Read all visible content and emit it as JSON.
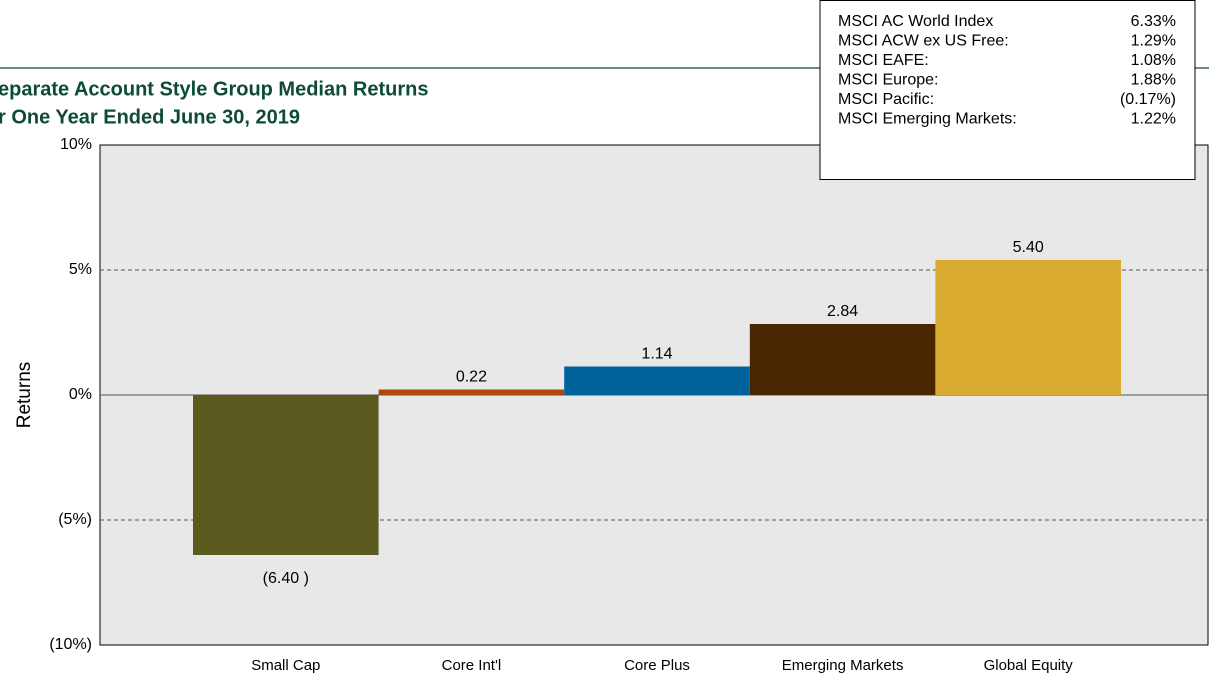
{
  "chart_data": {
    "type": "bar",
    "title_lines": [
      "eparate Account Style Group Median Returns",
      "r One Year Ended June 30, 2019"
    ],
    "ylabel": "Returns",
    "categories": [
      "Small Cap",
      "Core Int'l",
      "Core Plus",
      "Emerging Markets",
      "Global Equity"
    ],
    "values": [
      -6.4,
      0.22,
      1.14,
      2.84,
      5.4
    ],
    "value_labels": [
      "(6.40 )",
      "0.22",
      "1.14",
      "2.84",
      "5.40"
    ],
    "colors": [
      "#5b5a1f",
      "#b0490f",
      "#00629b",
      "#4a2601",
      "#d9aa30"
    ],
    "ylim": [
      -10,
      10
    ],
    "yticks": [
      {
        "value": -10,
        "label": "(10%)"
      },
      {
        "value": -5,
        "label": "(5%)"
      },
      {
        "value": 0,
        "label": "0%"
      },
      {
        "value": 5,
        "label": "5%"
      },
      {
        "value": 10,
        "label": "10%"
      }
    ],
    "grid": true,
    "index_returns": [
      {
        "name": "MSCI AC World Index",
        "value": "6.33%"
      },
      {
        "name": "MSCI ACW ex US Free:",
        "value": "1.29%"
      },
      {
        "name": "MSCI EAFE:",
        "value": "1.08%"
      },
      {
        "name": "MSCI Europe:",
        "value": "1.88%"
      },
      {
        "name": "MSCI Pacific:",
        "value": "(0.17%)"
      },
      {
        "name": "MSCI Emerging Markets:",
        "value": "1.22%"
      }
    ]
  }
}
